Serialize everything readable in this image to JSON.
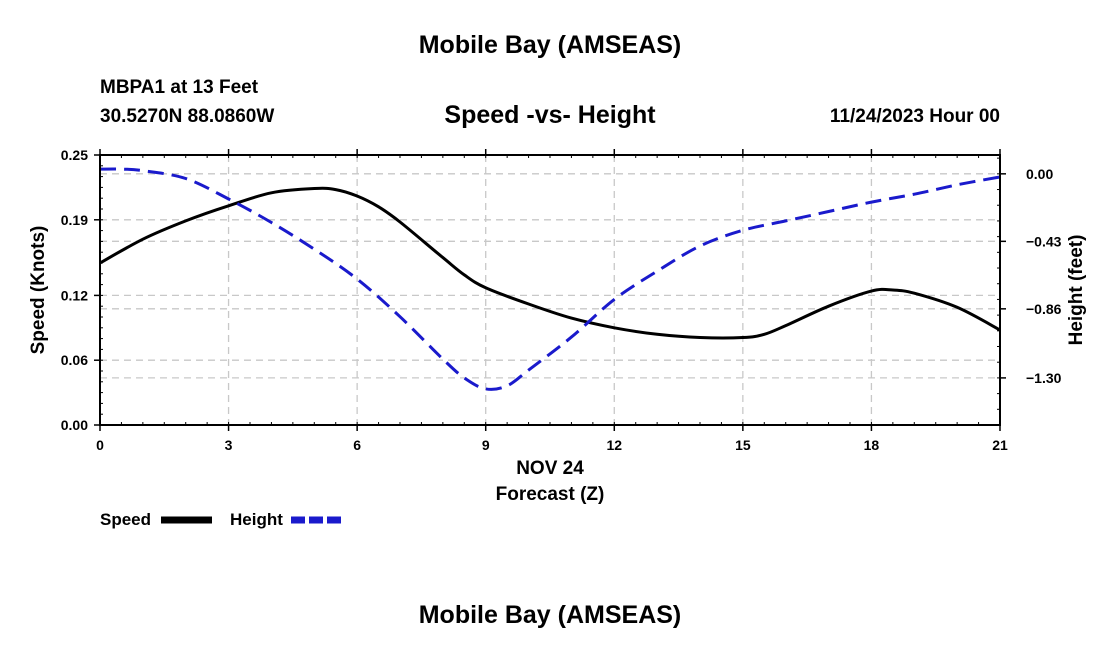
{
  "header": {
    "top_title": "Mobile Bay (AMSEAS)",
    "station": "MBPA1 at 13 Feet",
    "coords": "30.5270N  88.0860W",
    "date_hour": "11/24/2023 Hour 00"
  },
  "footer": {
    "bottom_title": "Mobile Bay (AMSEAS)"
  },
  "chart_data": {
    "type": "line",
    "title": "Speed -vs- Height",
    "xlabel": "Forecast (Z)",
    "date_label": "NOV 24",
    "ylabel": "Speed (Knots)",
    "y2label": "Height (feet)",
    "xlim": [
      0,
      21
    ],
    "x_ticks": [
      0,
      3,
      6,
      9,
      12,
      15,
      18,
      21
    ],
    "ylim": [
      0,
      0.25
    ],
    "y_ticks": [
      "0.00",
      "0.06",
      "0.12",
      "0.19",
      "0.25"
    ],
    "y2lim": [
      -1.6,
      0.12
    ],
    "y2_ticks": [
      "0.00",
      "-0.43",
      "-0.86",
      "-1.30"
    ],
    "grid": true,
    "legend_position": "bottom-left",
    "series": [
      {
        "name": "Speed",
        "axis": "left",
        "color": "#000000",
        "dash": "solid",
        "x": [
          0,
          1,
          2,
          3,
          4,
          5,
          5.5,
          6,
          6.5,
          7,
          8,
          8.5,
          9,
          10,
          11,
          12,
          13,
          14,
          15,
          15.5,
          16,
          17,
          18,
          18.5,
          19,
          20,
          21
        ],
        "values": [
          0.15,
          0.172,
          0.189,
          0.203,
          0.215,
          0.219,
          0.218,
          0.212,
          0.202,
          0.188,
          0.155,
          0.139,
          0.127,
          0.112,
          0.099,
          0.09,
          0.084,
          0.081,
          0.081,
          0.084,
          0.092,
          0.11,
          0.124,
          0.125,
          0.122,
          0.109,
          0.088
        ]
      },
      {
        "name": "Height",
        "axis": "right",
        "color": "#1a1acc",
        "dash": "dashed",
        "x": [
          0,
          0.5,
          1,
          2,
          3,
          4,
          5,
          6,
          7,
          8,
          8.5,
          9,
          9.5,
          10,
          11,
          12,
          13,
          14,
          15,
          16,
          17,
          18,
          19,
          20,
          21
        ],
        "values": [
          0.03,
          0.03,
          0.02,
          -0.03,
          -0.16,
          -0.31,
          -0.48,
          -0.67,
          -0.91,
          -1.18,
          -1.3,
          -1.37,
          -1.35,
          -1.25,
          -1.04,
          -0.8,
          -0.62,
          -0.46,
          -0.36,
          -0.3,
          -0.24,
          -0.18,
          -0.13,
          -0.07,
          -0.02
        ]
      }
    ]
  }
}
